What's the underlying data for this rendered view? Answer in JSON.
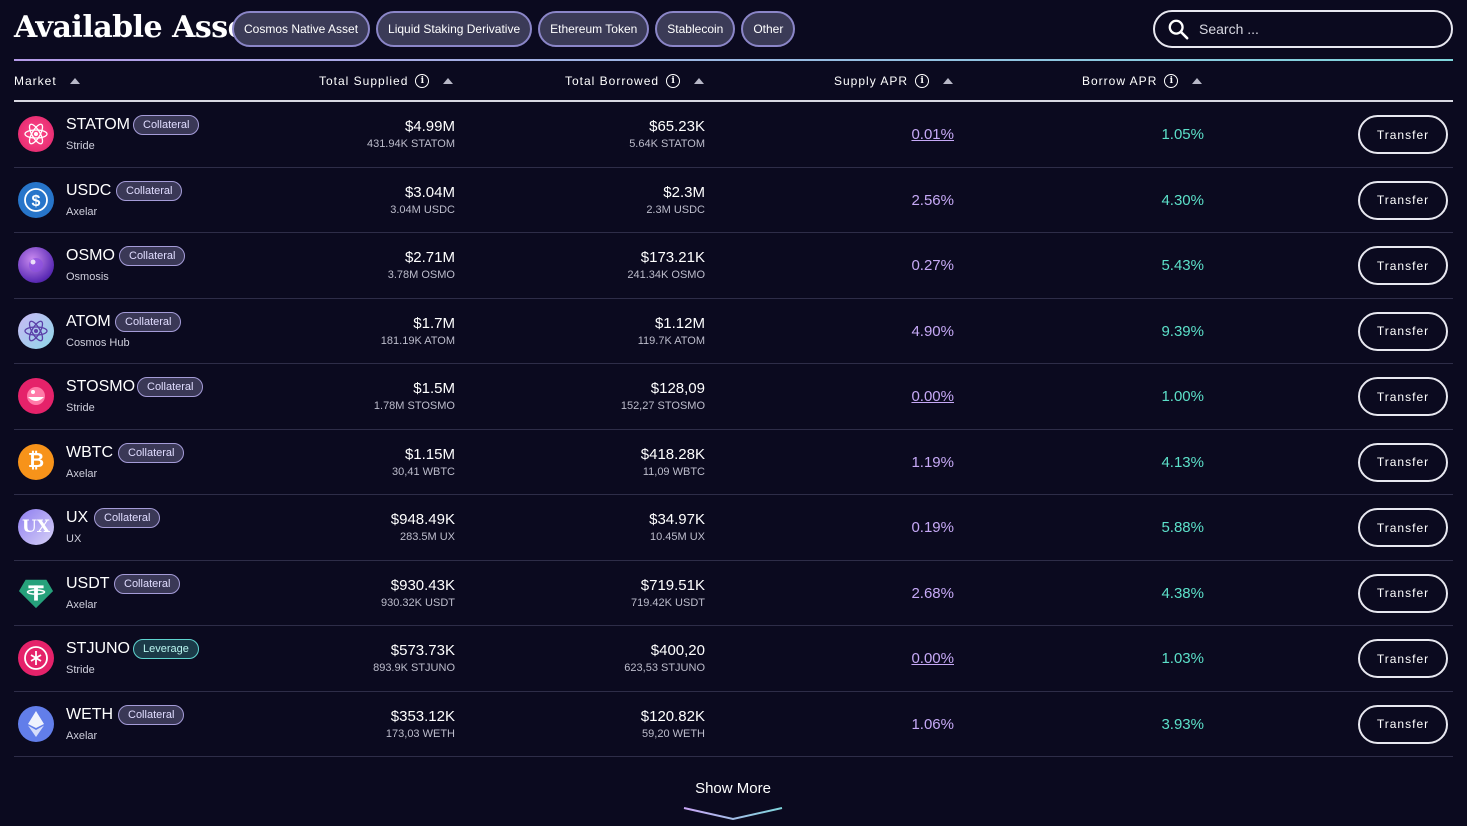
{
  "page": {
    "title": "Available Assets"
  },
  "filters": [
    "Cosmos Native Asset",
    "Liquid Staking Derivative",
    "Ethereum Token",
    "Stablecoin",
    "Other"
  ],
  "search": {
    "placeholder": "Search ..."
  },
  "columns": {
    "market": "Market",
    "total_supplied": "Total Supplied",
    "total_borrowed": "Total Borrowed",
    "supply_apr": "Supply APR",
    "borrow_apr": "Borrow APR"
  },
  "colors": {
    "accent_purple": "#c6a9f6",
    "accent_teal": "#5ce0c9",
    "background": "#0b0a1f"
  },
  "assets": [
    {
      "symbol": "STATOM",
      "tag": "Collateral",
      "chain": "Stride",
      "supplied": "$4.99M",
      "supplied_units": "431.94K STATOM",
      "borrowed": "$65.23K",
      "borrowed_units": "5.64K STATOM",
      "supply_apr": "0.01%",
      "borrow_apr": "1.05%",
      "action": "Transfer",
      "icon": "statom-icon"
    },
    {
      "symbol": "USDC",
      "tag": "Collateral",
      "chain": "Axelar",
      "supplied": "$3.04M",
      "supplied_units": "3.04M USDC",
      "borrowed": "$2.3M",
      "borrowed_units": "2.3M USDC",
      "supply_apr": "2.56%",
      "borrow_apr": "4.30%",
      "action": "Transfer",
      "icon": "usdc-icon"
    },
    {
      "symbol": "OSMO",
      "tag": "Collateral",
      "chain": "Osmosis",
      "supplied": "$2.71M",
      "supplied_units": "3.78M OSMO",
      "borrowed": "$173.21K",
      "borrowed_units": "241.34K OSMO",
      "supply_apr": "0.27%",
      "borrow_apr": "5.43%",
      "action": "Transfer",
      "icon": "osmo-icon"
    },
    {
      "symbol": "ATOM",
      "tag": "Collateral",
      "chain": "Cosmos Hub",
      "supplied": "$1.7M",
      "supplied_units": "181.19K ATOM",
      "borrowed": "$1.12M",
      "borrowed_units": "119.7K ATOM",
      "supply_apr": "4.90%",
      "borrow_apr": "9.39%",
      "action": "Transfer",
      "icon": "atom-icon"
    },
    {
      "symbol": "STOSMO",
      "tag": "Collateral",
      "chain": "Stride",
      "supplied": "$1.5M",
      "supplied_units": "1.78M STOSMO",
      "borrowed": "$128,09",
      "borrowed_units": "152,27 STOSMO",
      "supply_apr": "0.00%",
      "borrow_apr": "1.00%",
      "action": "Transfer",
      "icon": "stosmo-icon"
    },
    {
      "symbol": "WBTC",
      "tag": "Collateral",
      "chain": "Axelar",
      "supplied": "$1.15M",
      "supplied_units": "30,41 WBTC",
      "borrowed": "$418.28K",
      "borrowed_units": "11,09 WBTC",
      "supply_apr": "1.19%",
      "borrow_apr": "4.13%",
      "action": "Transfer",
      "icon": "wbtc-icon"
    },
    {
      "symbol": "UX",
      "tag": "Collateral",
      "chain": "UX",
      "supplied": "$948.49K",
      "supplied_units": "283.5M UX",
      "borrowed": "$34.97K",
      "borrowed_units": "10.45M UX",
      "supply_apr": "0.19%",
      "borrow_apr": "5.88%",
      "action": "Transfer",
      "icon": "ux-icon"
    },
    {
      "symbol": "USDT",
      "tag": "Collateral",
      "chain": "Axelar",
      "supplied": "$930.43K",
      "supplied_units": "930.32K USDT",
      "borrowed": "$719.51K",
      "borrowed_units": "719.42K USDT",
      "supply_apr": "2.68%",
      "borrow_apr": "4.38%",
      "action": "Transfer",
      "icon": "usdt-icon"
    },
    {
      "symbol": "STJUNO",
      "tag": "Leverage",
      "chain": "Stride",
      "supplied": "$573.73K",
      "supplied_units": "893.9K STJUNO",
      "borrowed": "$400,20",
      "borrowed_units": "623,53 STJUNO",
      "supply_apr": "0.00%",
      "borrow_apr": "1.03%",
      "action": "Transfer",
      "icon": "stjuno-icon"
    },
    {
      "symbol": "WETH",
      "tag": "Collateral",
      "chain": "Axelar",
      "supplied": "$353.12K",
      "supplied_units": "173,03 WETH",
      "borrowed": "$120.82K",
      "borrowed_units": "59,20 WETH",
      "supply_apr": "1.06%",
      "borrow_apr": "3.93%",
      "action": "Transfer",
      "icon": "weth-icon"
    }
  ],
  "show_more": "Show More"
}
